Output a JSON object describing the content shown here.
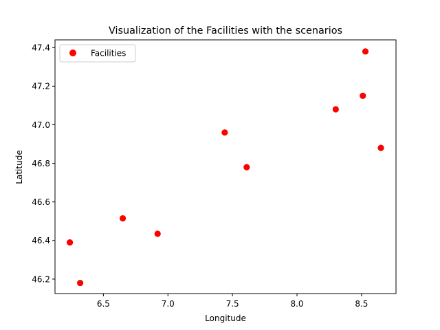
{
  "chart_data": {
    "type": "scatter",
    "title": "Visualization of the Facilities with the scenarios",
    "xlabel": "Longitude",
    "ylabel": "Latitude",
    "xlim": [
      6.125,
      8.767
    ],
    "ylim": [
      46.125,
      47.44
    ],
    "xticks": [
      6.5,
      7.0,
      7.5,
      8.0,
      8.5
    ],
    "xtick_labels": [
      "6.5",
      "7.0",
      "7.5",
      "8.0",
      "8.5"
    ],
    "yticks": [
      46.2,
      46.4,
      46.6,
      46.8,
      47.0,
      47.2,
      47.4
    ],
    "ytick_labels": [
      "46.2",
      "46.4",
      "46.6",
      "46.8",
      "47.0",
      "47.2",
      "47.4"
    ],
    "grid": false,
    "legend": {
      "position": "top-left"
    },
    "series": [
      {
        "name": "Facilities",
        "color": "#ff0000",
        "points": [
          {
            "x": 8.53,
            "y": 47.38
          },
          {
            "x": 8.51,
            "y": 47.15
          },
          {
            "x": 8.3,
            "y": 47.08
          },
          {
            "x": 7.44,
            "y": 46.96
          },
          {
            "x": 8.65,
            "y": 46.88
          },
          {
            "x": 7.61,
            "y": 46.78
          },
          {
            "x": 6.65,
            "y": 46.515
          },
          {
            "x": 6.92,
            "y": 46.435
          },
          {
            "x": 6.24,
            "y": 46.39
          },
          {
            "x": 6.32,
            "y": 46.18
          }
        ]
      }
    ]
  }
}
